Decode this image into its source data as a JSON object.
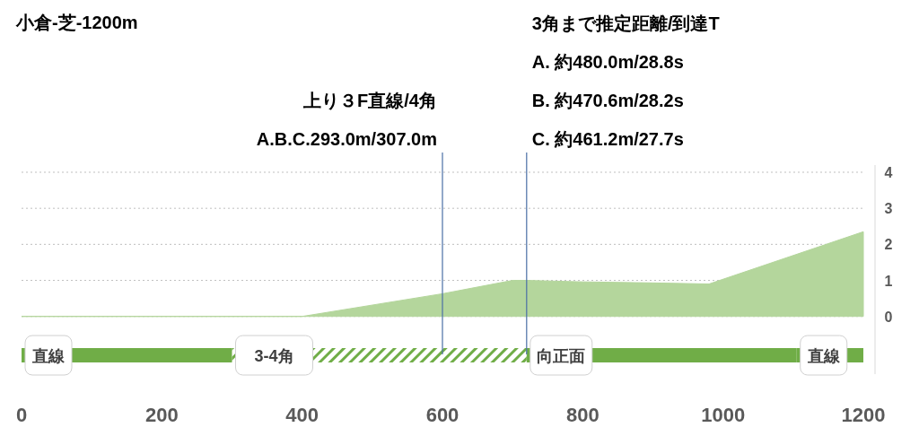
{
  "chart_data": {
    "type": "area",
    "title": "小倉-芝-1200m",
    "x": [
      0,
      400,
      600,
      700,
      720,
      800,
      900,
      980,
      1200
    ],
    "values": [
      0,
      0,
      0.63,
      1.0,
      1.0,
      0.96,
      0.93,
      0.9,
      2.35
    ],
    "color": "#b4d69c",
    "xlim": [
      0,
      1200
    ],
    "xticks": [
      0,
      200,
      400,
      600,
      800,
      1000,
      1200
    ],
    "ylim": [
      -1.6,
      4
    ],
    "yticks": [
      0,
      1,
      2,
      3,
      4
    ],
    "grid": "y",
    "ref_lines": [
      {
        "axis": "x",
        "value": 600,
        "label": "上り３F直線/4角\nA.B.C.293.0m/307.0m",
        "color": "#4a6fa5"
      },
      {
        "axis": "x",
        "value": 720,
        "label": "3角まで推定距離/到達T\nA. 約480.0m/28.8s\nB. 約470.6m/28.2s\nC. 約461.2m/27.7s",
        "color": "#4a6fa5"
      }
    ],
    "bands": [
      {
        "axis": "x",
        "from": 0,
        "to": 300,
        "label": "直線",
        "color": "#70ad47"
      },
      {
        "axis": "x",
        "from": 300,
        "to": 720,
        "label": "3-4角"
      },
      {
        "axis": "x",
        "from": 720,
        "to": 1105,
        "label": "向正面",
        "color": "#70ad47"
      },
      {
        "axis": "x",
        "from": 1105,
        "to": 1200,
        "label": "直線",
        "color": "#70ad47"
      }
    ]
  }
}
